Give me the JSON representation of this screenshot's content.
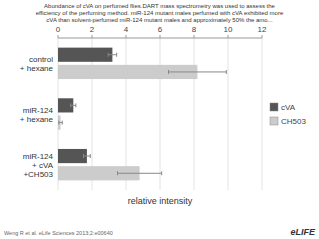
{
  "chart_data": {
    "type": "bar",
    "orientation": "horizontal",
    "title": "Abundance of cVA on perfumed flies.DART mass spectrometry was used to assess the\nefficiency of the perfuming method. miR-124 mutant males perfumed with cVA exhibited more\ncVA than solvent-perfumed miR-124 mutant males and approximately 50% the amo...",
    "x_label": "relative intensity",
    "categories": [
      "control\n+ hexane",
      "miR-124\n+ hexane",
      "miR-124\n+ cVA\n+CH503"
    ],
    "series": [
      {
        "name": "cVA",
        "color": "#555555",
        "values": [
          3.2,
          0.9,
          1.7
        ],
        "errors": [
          0.25,
          0.15,
          0.2
        ]
      },
      {
        "name": "CH503",
        "color": "#cccccc",
        "values": [
          8.2,
          0.15,
          4.8
        ],
        "errors": [
          1.7,
          0.1,
          1.3
        ]
      }
    ],
    "xlim": [
      0,
      12
    ],
    "xticks": [
      0,
      2,
      4,
      6,
      8,
      10,
      12
    ],
    "grid": true,
    "legend": "right",
    "annotations": [
      "Weng R et al. eLife Sciences 2013;2:e00640",
      "eLIFE"
    ]
  }
}
